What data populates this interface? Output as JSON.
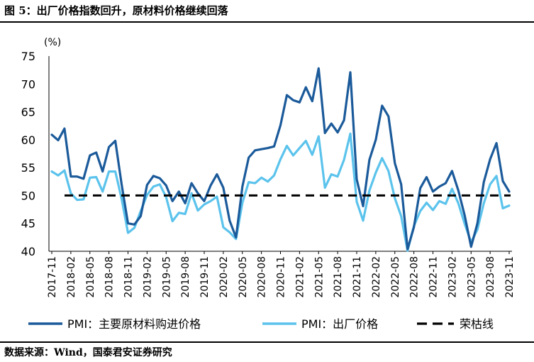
{
  "figure_title": "图 5：出厂价格指数回升，原材料价格继续回落",
  "source_note": "数据来源：Wind，国泰君安证券研究",
  "colors": {
    "pmi_raw": "#1b5a9a",
    "pmi_output": "#5bc3ec",
    "boom_bust": "#000000"
  },
  "chart_data": {
    "type": "line",
    "title": "",
    "ylabel": "(%)",
    "xlabel": "",
    "ylim": [
      40,
      75
    ],
    "yticks": [
      40,
      45,
      50,
      55,
      60,
      65,
      70,
      75
    ],
    "grid": false,
    "legend_position": "bottom",
    "x_labels": [
      "2017-11",
      "2018-02",
      "2018-05",
      "2018-08",
      "2018-11",
      "2019-02",
      "2019-05",
      "2019-08",
      "2019-11",
      "2020-02",
      "2020-05",
      "2020-08",
      "2020-11",
      "2021-02",
      "2021-05",
      "2021-08",
      "2021-11",
      "2022-02",
      "2022-05",
      "2022-08",
      "2022-11",
      "2023-02",
      "2023-05",
      "2023-08",
      "2023-11"
    ],
    "x": [
      "2017-11",
      "2017-12",
      "2018-01",
      "2018-02",
      "2018-03",
      "2018-04",
      "2018-05",
      "2018-06",
      "2018-07",
      "2018-08",
      "2018-09",
      "2018-10",
      "2018-11",
      "2018-12",
      "2019-01",
      "2019-02",
      "2019-03",
      "2019-04",
      "2019-05",
      "2019-06",
      "2019-07",
      "2019-08",
      "2019-09",
      "2019-10",
      "2019-11",
      "2019-12",
      "2020-01",
      "2020-02",
      "2020-03",
      "2020-04",
      "2020-05",
      "2020-06",
      "2020-07",
      "2020-08",
      "2020-09",
      "2020-10",
      "2020-11",
      "2020-12",
      "2021-01",
      "2021-02",
      "2021-03",
      "2021-04",
      "2021-05",
      "2021-06",
      "2021-07",
      "2021-08",
      "2021-09",
      "2021-10",
      "2021-11",
      "2021-12",
      "2022-01",
      "2022-02",
      "2022-03",
      "2022-04",
      "2022-05",
      "2022-06",
      "2022-07",
      "2022-08",
      "2022-09",
      "2022-10",
      "2022-11",
      "2022-12",
      "2023-01",
      "2023-02",
      "2023-03",
      "2023-04",
      "2023-05",
      "2023-06",
      "2023-07",
      "2023-08",
      "2023-09",
      "2023-10",
      "2023-11"
    ],
    "series": [
      {
        "name": "PMI：主要原材料购进价格",
        "values": [
          60.9,
          59.9,
          62.0,
          53.4,
          53.4,
          53.0,
          57.2,
          57.7,
          54.3,
          58.7,
          59.8,
          52.0,
          45.0,
          44.8,
          46.3,
          51.9,
          53.5,
          53.1,
          51.8,
          49.0,
          50.7,
          48.6,
          52.2,
          50.4,
          49.0,
          51.8,
          53.8,
          51.4,
          45.5,
          42.5,
          51.6,
          56.8,
          58.1,
          58.3,
          58.5,
          58.8,
          62.6,
          68.0,
          67.1,
          66.7,
          69.4,
          66.9,
          72.8,
          61.2,
          62.9,
          61.3,
          63.5,
          72.1,
          52.9,
          48.1,
          56.4,
          60.0,
          66.1,
          64.2,
          55.8,
          52.0,
          40.4,
          44.3,
          51.3,
          53.3,
          50.7,
          51.6,
          52.2,
          54.4,
          50.9,
          46.4,
          40.8,
          45.0,
          52.4,
          56.5,
          59.4,
          52.6,
          50.7
        ]
      },
      {
        "name": "PMI：出厂价格",
        "values": [
          54.3,
          53.6,
          54.5,
          50.4,
          49.2,
          49.3,
          53.2,
          53.3,
          50.7,
          54.3,
          54.3,
          49.4,
          43.3,
          44.2,
          47.2,
          50.1,
          51.6,
          52.0,
          49.7,
          45.4,
          46.9,
          46.7,
          50.4,
          47.3,
          48.4,
          49.0,
          49.8,
          44.3,
          43.4,
          42.2,
          48.7,
          52.4,
          52.2,
          53.2,
          52.5,
          53.6,
          56.5,
          58.9,
          57.2,
          58.5,
          59.8,
          57.3,
          60.6,
          51.4,
          53.8,
          53.4,
          56.4,
          61.1,
          48.9,
          45.5,
          50.9,
          54.1,
          56.7,
          54.4,
          49.5,
          46.3,
          40.1,
          44.5,
          47.2,
          48.7,
          47.4,
          49.0,
          48.5,
          51.2,
          48.6,
          44.9,
          41.6,
          43.9,
          48.6,
          52.0,
          53.5,
          47.7,
          48.2
        ]
      },
      {
        "name": "荣枯线",
        "values": [
          50,
          50,
          50,
          50,
          50,
          50,
          50,
          50,
          50,
          50,
          50,
          50,
          50,
          50,
          50,
          50,
          50,
          50,
          50,
          50,
          50,
          50,
          50,
          50,
          50,
          50,
          50,
          50,
          50,
          50,
          50,
          50,
          50,
          50,
          50,
          50,
          50,
          50,
          50,
          50,
          50,
          50,
          50,
          50,
          50,
          50,
          50,
          50,
          50,
          50,
          50,
          50,
          50,
          50,
          50,
          50,
          50,
          50,
          50,
          50,
          50,
          50,
          50,
          50,
          50,
          50,
          50,
          50,
          50,
          50,
          50,
          50,
          50
        ]
      }
    ]
  }
}
